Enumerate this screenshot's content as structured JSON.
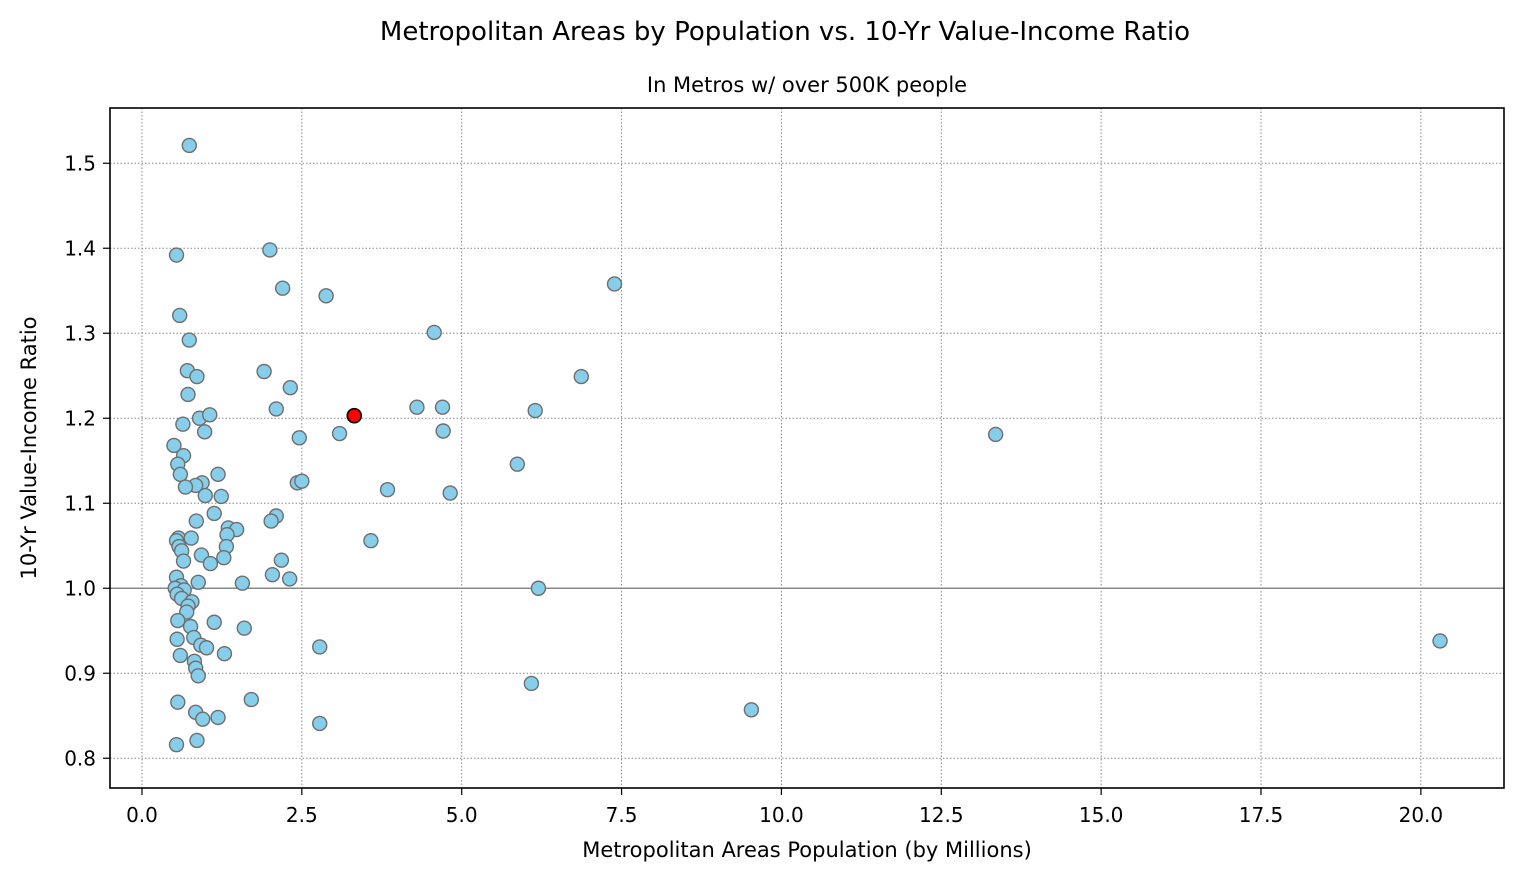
{
  "chart_data": {
    "type": "scatter",
    "title": "Metropolitan Areas by Population vs. 10-Yr Value-Income Ratio",
    "subtitle": "In Metros w/ over 500K people",
    "xlabel": "Metropolitan Areas Population (by Millions)",
    "ylabel": "10-Yr Value-Income Ratio",
    "xlim": [
      -0.5,
      21.3
    ],
    "ylim": [
      0.765,
      1.565
    ],
    "xticks": [
      "0.0",
      "2.5",
      "5.0",
      "7.5",
      "10.0",
      "12.5",
      "15.0",
      "17.5",
      "20.0"
    ],
    "yticks": [
      "0.8",
      "0.9",
      "1.0",
      "1.1",
      "1.2",
      "1.3",
      "1.4",
      "1.5"
    ],
    "grid": true,
    "reference_line_y": 1.0,
    "colors": {
      "point_fill": "#87ceeb",
      "point_edge": "#6e6e6e",
      "highlight_fill": "#ff0000",
      "highlight_edge": "#000000",
      "reference_line": "#888888"
    },
    "highlight": {
      "x": 3.32,
      "y": 1.203
    },
    "points": [
      [
        0.74,
        1.521
      ],
      [
        0.54,
        1.392
      ],
      [
        2.0,
        1.398
      ],
      [
        2.2,
        1.353
      ],
      [
        2.88,
        1.344
      ],
      [
        7.39,
        1.358
      ],
      [
        0.59,
        1.321
      ],
      [
        0.74,
        1.292
      ],
      [
        4.57,
        1.301
      ],
      [
        0.71,
        1.256
      ],
      [
        0.86,
        1.249
      ],
      [
        1.91,
        1.255
      ],
      [
        6.87,
        1.249
      ],
      [
        0.72,
        1.228
      ],
      [
        2.32,
        1.236
      ],
      [
        0.64,
        1.193
      ],
      [
        0.9,
        1.2
      ],
      [
        1.06,
        1.204
      ],
      [
        2.1,
        1.211
      ],
      [
        4.3,
        1.213
      ],
      [
        4.7,
        1.213
      ],
      [
        6.15,
        1.209
      ],
      [
        0.98,
        1.184
      ],
      [
        2.46,
        1.177
      ],
      [
        3.09,
        1.182
      ],
      [
        4.71,
        1.185
      ],
      [
        13.35,
        1.181
      ],
      [
        0.5,
        1.168
      ],
      [
        0.65,
        1.156
      ],
      [
        0.56,
        1.146
      ],
      [
        5.87,
        1.146
      ],
      [
        0.6,
        1.134
      ],
      [
        1.19,
        1.134
      ],
      [
        0.94,
        1.124
      ],
      [
        0.84,
        1.121
      ],
      [
        0.68,
        1.119
      ],
      [
        2.43,
        1.124
      ],
      [
        2.5,
        1.126
      ],
      [
        3.84,
        1.116
      ],
      [
        0.99,
        1.109
      ],
      [
        1.24,
        1.108
      ],
      [
        4.82,
        1.112
      ],
      [
        1.13,
        1.088
      ],
      [
        2.1,
        1.085
      ],
      [
        2.02,
        1.079
      ],
      [
        0.85,
        1.079
      ],
      [
        1.35,
        1.071
      ],
      [
        1.48,
        1.069
      ],
      [
        1.33,
        1.063
      ],
      [
        0.57,
        1.059
      ],
      [
        0.77,
        1.059
      ],
      [
        0.54,
        1.056
      ],
      [
        3.58,
        1.056
      ],
      [
        0.58,
        1.049
      ],
      [
        1.32,
        1.049
      ],
      [
        0.62,
        1.044
      ],
      [
        0.93,
        1.039
      ],
      [
        1.28,
        1.036
      ],
      [
        2.18,
        1.033
      ],
      [
        0.65,
        1.032
      ],
      [
        1.07,
        1.029
      ],
      [
        2.04,
        1.016
      ],
      [
        0.54,
        1.013
      ],
      [
        2.31,
        1.011
      ],
      [
        0.88,
        1.007
      ],
      [
        1.57,
        1.006
      ],
      [
        0.61,
        1.003
      ],
      [
        6.2,
        1.0
      ],
      [
        0.52,
        1.0
      ],
      [
        0.66,
        0.998
      ],
      [
        0.55,
        0.993
      ],
      [
        0.62,
        0.988
      ],
      [
        0.78,
        0.984
      ],
      [
        0.72,
        0.979
      ],
      [
        0.7,
        0.972
      ],
      [
        0.56,
        0.962
      ],
      [
        1.13,
        0.96
      ],
      [
        0.76,
        0.955
      ],
      [
        1.6,
        0.953
      ],
      [
        0.81,
        0.942
      ],
      [
        0.55,
        0.94
      ],
      [
        0.92,
        0.933
      ],
      [
        1.01,
        0.93
      ],
      [
        2.78,
        0.931
      ],
      [
        20.3,
        0.938
      ],
      [
        0.6,
        0.921
      ],
      [
        1.29,
        0.923
      ],
      [
        0.82,
        0.914
      ],
      [
        0.84,
        0.906
      ],
      [
        0.88,
        0.897
      ],
      [
        6.09,
        0.888
      ],
      [
        1.71,
        0.869
      ],
      [
        0.56,
        0.866
      ],
      [
        9.53,
        0.857
      ],
      [
        0.84,
        0.854
      ],
      [
        0.95,
        0.846
      ],
      [
        1.19,
        0.848
      ],
      [
        2.78,
        0.841
      ],
      [
        0.86,
        0.821
      ],
      [
        0.54,
        0.816
      ]
    ]
  }
}
